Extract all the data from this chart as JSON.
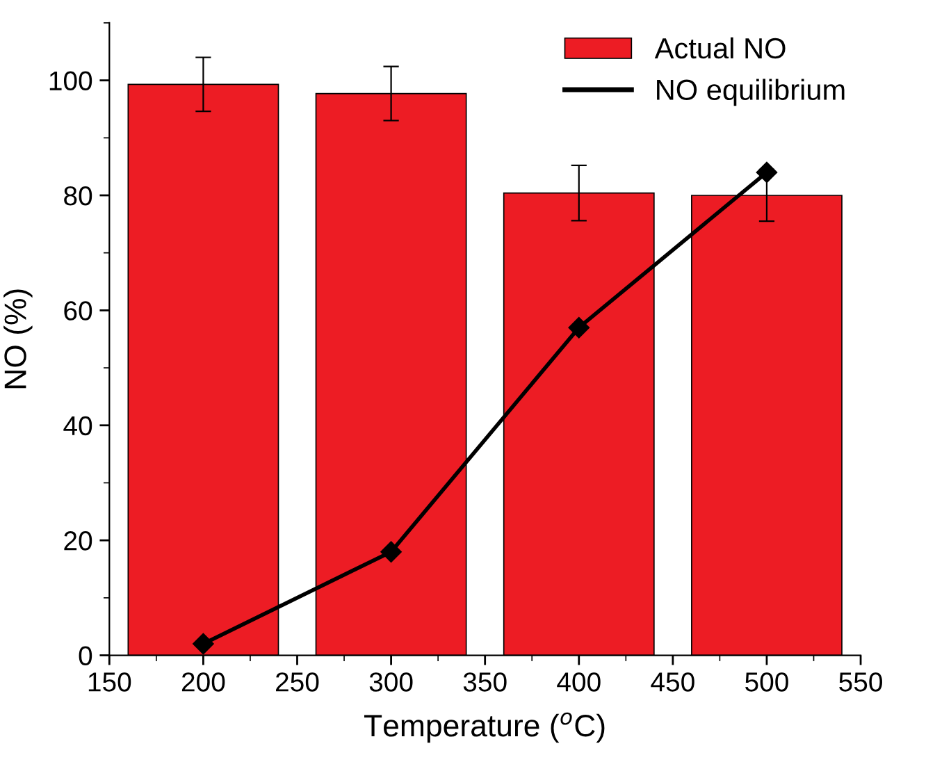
{
  "chart_data": {
    "type": "bar",
    "xlabel": "Temperature ($^{o}$C)",
    "ylabel": "NO (%)",
    "x": [
      200,
      300,
      400,
      500
    ],
    "series": [
      {
        "name": "Actual NO",
        "color": "#ed1c24",
        "values": [
          99.3,
          97.7,
          80.4,
          80.0
        ],
        "errors": [
          4.7,
          4.7,
          4.8,
          4.5
        ]
      },
      {
        "name": "NO equilibrium",
        "type": "line",
        "color": "#000000",
        "values": [
          2,
          18,
          57,
          84
        ],
        "marker": "diamond",
        "line_style": "solid"
      }
    ],
    "xlim": [
      150,
      550
    ],
    "xticks": [
      150,
      200,
      250,
      300,
      350,
      400,
      450,
      500,
      550
    ],
    "ylim": [
      0,
      110
    ],
    "yticks": [
      0,
      20,
      40,
      60,
      80,
      100
    ],
    "grid": false,
    "legend": "top right"
  }
}
